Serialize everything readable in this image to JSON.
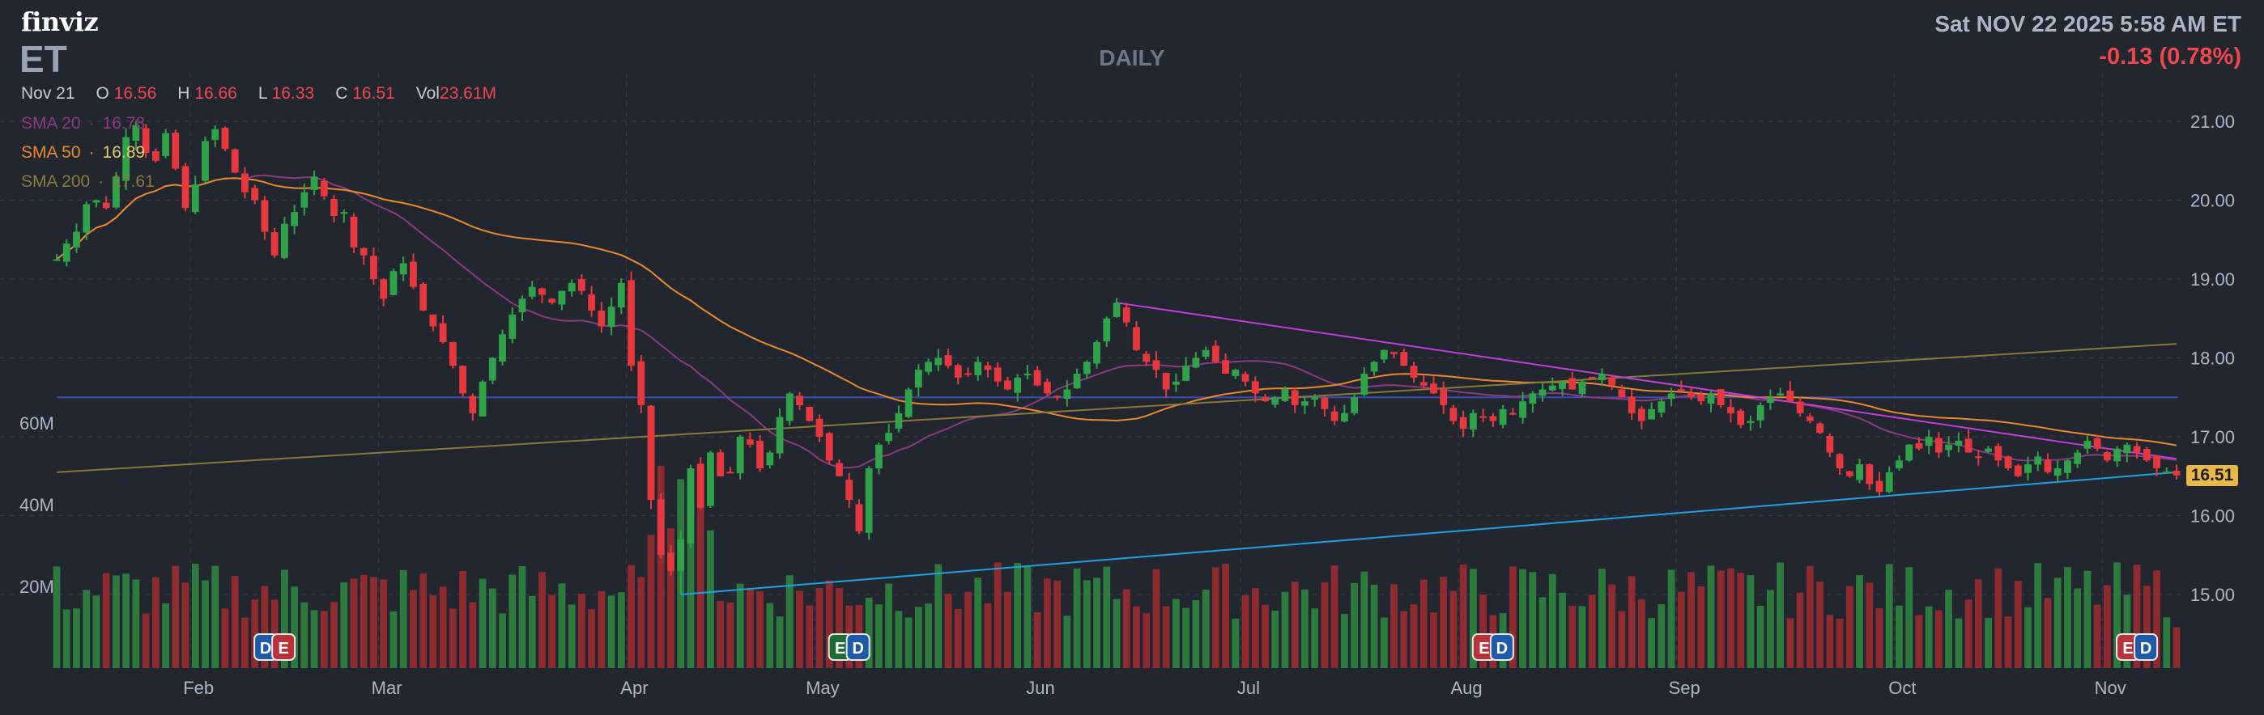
{
  "header": {
    "logo": "finviz",
    "ticker": "ET",
    "period": "DAILY",
    "datetime": "Sat NOV 22 2025 5:58 AM ET",
    "change": "-0.13 (0.78%)"
  },
  "ohlc": {
    "date": "Nov 21",
    "open_label": "O",
    "open": "16.56",
    "high_label": "H",
    "high": "16.66",
    "low_label": "L",
    "low": "16.33",
    "close_label": "C",
    "close": "16.51",
    "vol_label": "Vol",
    "vol": "23.61M"
  },
  "sma": [
    {
      "label": "SMA 20",
      "value": "16.78",
      "color": "#8b3a7e"
    },
    {
      "label": "SMA 50",
      "value": "16.89",
      "color": "#e9892f"
    },
    {
      "label": "SMA 200",
      "value": "17.61",
      "color": "#8a7a3a"
    }
  ],
  "last_price": "16.51",
  "colors": {
    "up": "#2fa24a",
    "down": "#e8383f",
    "vol_up": "#2d7a3e",
    "vol_down": "#8e2b30",
    "downtrend": "#c040d8",
    "uptrend": "#1fa0e0",
    "hline": "#3c4bb0",
    "grid": "#353a45"
  },
  "chart_data": {
    "type": "candlestick",
    "y_axis": {
      "range": [
        14.5,
        21.4
      ],
      "ticks": [
        "15.00",
        "16.00",
        "17.00",
        "18.00",
        "19.00",
        "20.00",
        "21.00"
      ]
    },
    "volume_axis": {
      "ticks": [
        "20M",
        "40M",
        "60M"
      ]
    },
    "x_axis": {
      "months": [
        "Feb",
        "Mar",
        "Apr",
        "May",
        "Jun",
        "Jul",
        "Aug",
        "Sep",
        "Oct",
        "Nov"
      ]
    },
    "horizontal_line": 17.5,
    "trendlines": [
      {
        "kind": "downtrend",
        "from": [
          "Jun 12",
          18.7
        ],
        "to": [
          "Nov 21",
          16.72
        ]
      },
      {
        "kind": "uptrend",
        "from": [
          "Apr 8",
          15.0
        ],
        "to": [
          "Nov 21",
          16.55
        ]
      }
    ],
    "event_markers": [
      {
        "date": "Feb 13",
        "labels": [
          "D",
          "E"
        ]
      },
      {
        "date": "May 6",
        "labels": [
          "E",
          "D"
        ]
      },
      {
        "date": "Aug 6",
        "labels": [
          "E",
          "D"
        ]
      },
      {
        "date": "Nov 5",
        "labels": [
          "E",
          "D"
        ]
      }
    ],
    "closes": [
      {
        "month": "Jan",
        "values": [
          19.25,
          19.45,
          19.6,
          19.95,
          20.0,
          19.9,
          20.3,
          20.8,
          20.95,
          20.6,
          20.5,
          20.85,
          20.4,
          19.9
        ]
      },
      {
        "month": "Feb",
        "values": [
          20.2,
          20.75,
          20.9,
          20.65,
          20.35,
          20.1,
          20.0,
          19.6,
          19.3,
          19.7,
          19.85,
          20.1,
          20.3,
          20.05,
          19.8,
          19.85,
          19.4,
          19.3,
          19.0
        ]
      },
      {
        "month": "Mar",
        "values": [
          18.75,
          19.1,
          19.2,
          18.9,
          18.6,
          18.4,
          18.2,
          17.9,
          17.55,
          17.3,
          17.7,
          18.0,
          18.3,
          18.55,
          18.75,
          18.9,
          18.8,
          18.7,
          18.85,
          18.95,
          18.85,
          18.6,
          18.4,
          18.65,
          18.95
        ]
      },
      {
        "month": "Apr",
        "values": [
          17.9,
          17.4,
          16.2,
          15.5,
          15.3,
          15.7,
          16.6,
          16.1,
          16.8,
          16.5,
          16.55,
          17.0,
          16.9,
          16.6,
          16.8,
          17.25,
          17.55,
          17.4,
          17.2
        ]
      },
      {
        "month": "May",
        "values": [
          17.0,
          16.7,
          16.5,
          16.2,
          15.8,
          16.6,
          16.9,
          17.05,
          17.3,
          17.6,
          17.85,
          17.95,
          18.0,
          17.9,
          17.75,
          17.8,
          17.95,
          17.85,
          17.7,
          17.6,
          17.75,
          17.8
        ]
      },
      {
        "month": "Jun",
        "values": [
          17.65,
          17.55,
          17.5,
          17.6,
          17.8,
          17.95,
          18.2,
          18.5,
          18.7,
          18.45,
          18.1,
          17.95,
          17.85,
          17.6,
          17.7,
          17.9,
          18.0,
          18.1,
          17.95,
          17.8,
          17.85
        ]
      },
      {
        "month": "Jul",
        "values": [
          17.7,
          17.55,
          17.45,
          17.5,
          17.6,
          17.4,
          17.45,
          17.5,
          17.35,
          17.2,
          17.3,
          17.5,
          17.8,
          17.95,
          18.1,
          18.05,
          17.9,
          17.75,
          17.65,
          17.55,
          17.4,
          17.2
        ]
      },
      {
        "month": "Aug",
        "values": [
          17.1,
          17.3,
          17.25,
          17.2,
          17.35,
          17.3,
          17.45,
          17.55,
          17.6,
          17.65,
          17.7,
          17.6,
          17.7,
          17.75,
          17.8,
          17.65,
          17.5,
          17.3,
          17.2,
          17.35,
          17.45,
          17.55
        ]
      },
      {
        "month": "Sep",
        "values": [
          17.6,
          17.5,
          17.45,
          17.55,
          17.4,
          17.3,
          17.15,
          17.2,
          17.4,
          17.5,
          17.55,
          17.45,
          17.3,
          17.2,
          17.05,
          16.8,
          16.6,
          16.5,
          16.65,
          16.4,
          16.3,
          16.55
        ]
      },
      {
        "month": "Oct",
        "values": [
          16.7,
          16.9,
          16.85,
          17.0,
          16.8,
          16.9,
          16.95,
          16.8,
          16.75,
          16.85,
          16.7,
          16.6,
          16.5,
          16.65,
          16.75,
          16.55,
          16.6,
          16.7,
          16.8,
          16.95,
          16.85
        ]
      },
      {
        "month": "Nov",
        "values": [
          16.7,
          16.85,
          16.9,
          16.8,
          16.7,
          16.6,
          16.56,
          16.51
        ]
      }
    ]
  }
}
